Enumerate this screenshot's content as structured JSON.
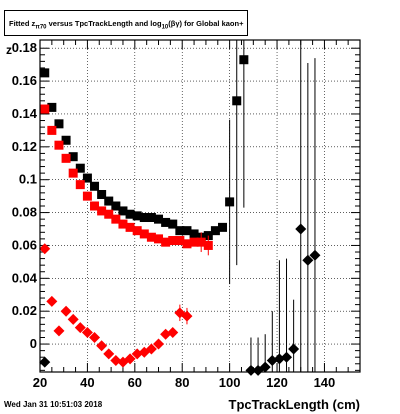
{
  "title": {
    "prefix": "Fitted  z",
    "sub1": "π70",
    "middle": " versus TpcTrackLength and log",
    "sub2": "10",
    "suffix": "(βγ) for Global kaon+"
  },
  "timestamp": "Wed Jan 31 10:51:03 2018",
  "ylabel_text": "z",
  "chart_data": {
    "type": "scatter",
    "title": "Fitted z_π70 versus TpcTrackLength and log10(βγ) for Global kaon+",
    "xlabel": "TpcTrackLength (cm)",
    "ylabel": "z",
    "xlim": [
      20,
      155
    ],
    "ylim": [
      -0.017,
      0.185
    ],
    "x_ticks": [
      20,
      40,
      60,
      80,
      100,
      120,
      140
    ],
    "y_ticks": [
      0,
      0.02,
      0.04,
      0.06,
      0.08,
      0.1,
      0.12,
      0.14,
      0.16,
      0.18
    ],
    "y_tick_labels": [
      "0",
      "0.02",
      "0.04",
      "0.06",
      "0.08",
      "0.1",
      "0.12",
      "0.14",
      "0.16",
      "0.18"
    ],
    "grid": true,
    "series": [
      {
        "marker": "square",
        "color": "#000000",
        "points": [
          [
            22,
            0.165,
            0
          ],
          [
            25,
            0.144,
            0
          ],
          [
            28,
            0.134,
            0
          ],
          [
            31,
            0.124,
            0
          ],
          [
            34,
            0.114,
            0
          ],
          [
            37,
            0.107,
            0
          ],
          [
            40,
            0.101,
            0
          ],
          [
            43,
            0.096,
            0
          ],
          [
            46,
            0.091,
            0
          ],
          [
            49,
            0.087,
            0
          ],
          [
            52,
            0.084,
            0
          ],
          [
            55,
            0.081,
            0
          ],
          [
            58,
            0.079,
            0
          ],
          [
            61,
            0.078,
            0
          ],
          [
            64,
            0.077,
            0
          ],
          [
            67,
            0.077,
            0
          ],
          [
            70,
            0.076,
            0
          ],
          [
            73,
            0.074,
            0
          ],
          [
            76,
            0.073,
            0
          ],
          [
            79,
            0.069,
            0
          ],
          [
            82,
            0.069,
            0
          ],
          [
            85,
            0.067,
            0
          ],
          [
            88,
            0.065,
            0
          ],
          [
            91,
            0.066,
            0
          ],
          [
            94,
            0.069,
            0
          ],
          [
            97,
            0.071,
            0
          ],
          [
            100,
            0.0865,
            0.05
          ],
          [
            103,
            0.148,
            0.1
          ],
          [
            106,
            0.173,
            0.09
          ]
        ]
      },
      {
        "marker": "square",
        "color": "#ff0000",
        "points": [
          [
            22,
            0.143,
            0
          ],
          [
            25,
            0.13,
            0
          ],
          [
            28,
            0.121,
            0
          ],
          [
            31,
            0.113,
            0
          ],
          [
            34,
            0.104,
            0
          ],
          [
            37,
            0.097,
            0
          ],
          [
            40,
            0.09,
            0
          ],
          [
            43,
            0.084,
            0
          ],
          [
            46,
            0.081,
            0
          ],
          [
            49,
            0.079,
            0
          ],
          [
            52,
            0.076,
            0
          ],
          [
            55,
            0.073,
            0
          ],
          [
            58,
            0.071,
            0
          ],
          [
            61,
            0.069,
            0
          ],
          [
            64,
            0.067,
            0
          ],
          [
            67,
            0.065,
            0
          ],
          [
            70,
            0.064,
            0
          ],
          [
            73,
            0.062,
            0
          ],
          [
            76,
            0.063,
            0
          ],
          [
            79,
            0.063,
            0
          ],
          [
            82,
            0.061,
            0
          ],
          [
            85,
            0.062,
            0
          ],
          [
            88,
            0.062,
            0.006
          ],
          [
            91,
            0.06,
            0.006
          ]
        ]
      },
      {
        "marker": "diamond",
        "color": "#ff0000",
        "points": [
          [
            22,
            0.058,
            0
          ],
          [
            25,
            0.026,
            0
          ],
          [
            28,
            0.008,
            0
          ],
          [
            31,
            0.02,
            0
          ],
          [
            34,
            0.015,
            0
          ],
          [
            37,
            0.01,
            0
          ],
          [
            40,
            0.007,
            0
          ],
          [
            43,
            0.004,
            0
          ],
          [
            46,
            -0.001,
            0
          ],
          [
            49,
            -0.006,
            0
          ],
          [
            52,
            -0.01,
            0
          ],
          [
            55,
            -0.011,
            0
          ],
          [
            58,
            -0.009,
            0
          ],
          [
            61,
            -0.006,
            0
          ],
          [
            64,
            -0.005,
            0
          ],
          [
            67,
            -0.003,
            0
          ],
          [
            70,
            0.0,
            0
          ],
          [
            73,
            0.006,
            0
          ],
          [
            76,
            0.007,
            0
          ],
          [
            79,
            0.019,
            0.005
          ],
          [
            82,
            0.017,
            0.005
          ]
        ]
      },
      {
        "marker": "diamond",
        "color": "#000000",
        "points": [
          [
            22,
            -0.011,
            0
          ],
          [
            109,
            -0.016,
            0.02
          ],
          [
            112,
            -0.016,
            0.02
          ],
          [
            115,
            -0.014,
            0.02
          ],
          [
            118,
            -0.01,
            0.03
          ],
          [
            121,
            -0.009,
            0.06
          ],
          [
            124,
            -0.008,
            0.06
          ],
          [
            127,
            -0.003,
            0.03
          ],
          [
            130,
            0.07,
            0.12
          ],
          [
            133,
            0.051,
            0.12
          ],
          [
            136,
            0.054,
            0.12
          ]
        ]
      }
    ]
  }
}
